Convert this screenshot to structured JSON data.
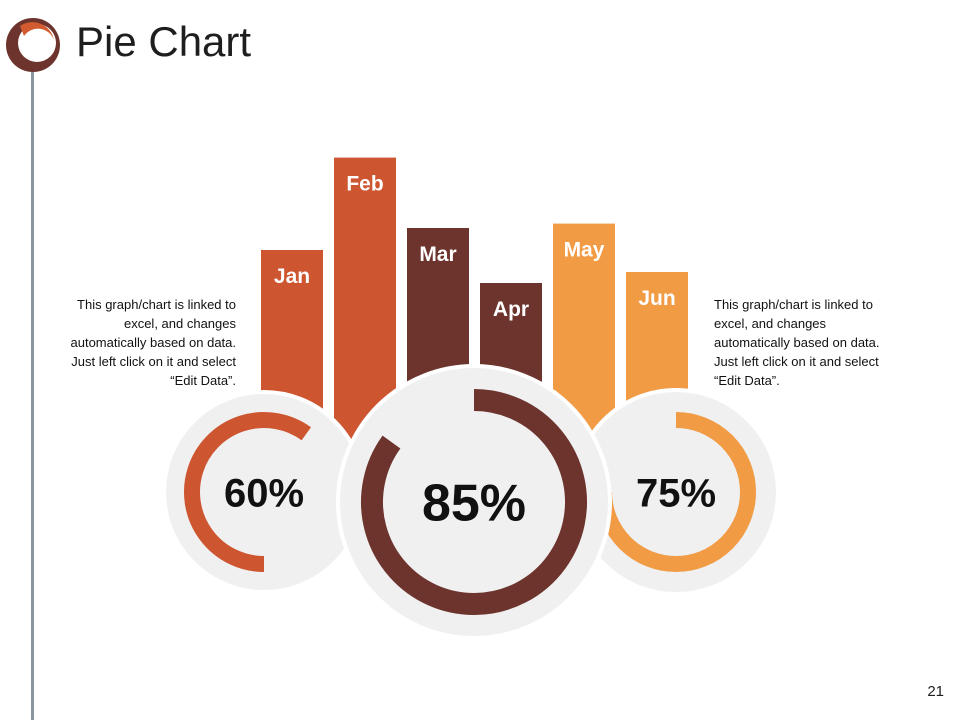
{
  "page": {
    "title": "Pie Chart",
    "page_number": "21",
    "note_left": "This graph/chart is linked to excel, and changes automatically based on data. Just left click on it and select “Edit Data”.",
    "note_right": "This graph/chart is linked to excel, and changes automatically based on data. Just left click on it and select “Edit Data”."
  },
  "colors": {
    "jan": "#cd5530",
    "feb": "#cd5530",
    "mar": "#6d342d",
    "apr": "#6d342d",
    "may": "#f29b45",
    "jun": "#f29b45",
    "circle_bg": "#f0f0f0",
    "logo_primary": "#d35b2f",
    "logo_secondary": "#6d342d",
    "side_line": "#8a969e"
  },
  "chart_data": [
    {
      "type": "bar",
      "categories": [
        "Jan",
        "Feb",
        "Mar",
        "Apr",
        "May",
        "Jun"
      ],
      "values": [
        100,
        142,
        110,
        85,
        112,
        90
      ]
    },
    {
      "type": "pie",
      "donuts": [
        {
          "label": "60%",
          "value": 60,
          "color": "#cd5530"
        },
        {
          "label": "85%",
          "value": 85,
          "color": "#6d342d"
        },
        {
          "label": "75%",
          "value": 75,
          "color": "#f29b45"
        }
      ]
    }
  ]
}
